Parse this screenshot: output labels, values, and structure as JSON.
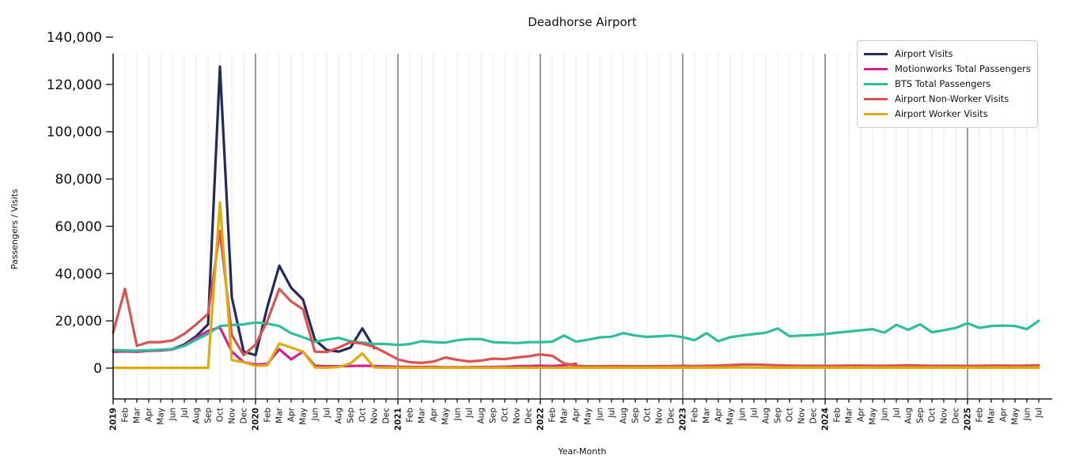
{
  "chart_data": {
    "type": "line",
    "title": "Deadhorse Airport",
    "xlabel": "Year-Month",
    "ylabel": "Passengers / Visits",
    "ylim": [
      0,
      140000
    ],
    "ytick_interval": 20000,
    "ytick_labels": [
      "0",
      "20,000",
      "40,000",
      "60,000",
      "80,000",
      "100,000",
      "120,000",
      "140,000"
    ],
    "grid": "light vertical gridline per month; dark vertical line at each January",
    "legend_position": "upper right",
    "categories": [
      "2019",
      "Feb",
      "Mar",
      "Apr",
      "May",
      "Jun",
      "Jul",
      "Aug",
      "Sep",
      "Oct",
      "Nov",
      "Dec",
      "2020",
      "Feb",
      "Mar",
      "Apr",
      "May",
      "Jun",
      "Jul",
      "Aug",
      "Sep",
      "Oct",
      "Nov",
      "Dec",
      "2021",
      "Feb",
      "Mar",
      "Apr",
      "May",
      "Jun",
      "Jul",
      "Aug",
      "Sep",
      "Oct",
      "Nov",
      "Dec",
      "2022",
      "Feb",
      "Mar",
      "Apr",
      "May",
      "Jun",
      "Jul",
      "Aug",
      "Sep",
      "Oct",
      "Nov",
      "Dec",
      "2023",
      "Feb",
      "Mar",
      "Apr",
      "May",
      "Jun",
      "Jul",
      "Aug",
      "Sep",
      "Oct",
      "Nov",
      "Dec",
      "2024",
      "Feb",
      "Mar",
      "Apr",
      "May",
      "Jun",
      "Jul",
      "Aug",
      "Sep",
      "Oct",
      "Nov",
      "Dec",
      "2025",
      "Feb",
      "Mar",
      "Apr",
      "May",
      "Jun",
      "Jul"
    ],
    "series": [
      {
        "name": "Airport Visits",
        "color": "#232a5a",
        "values": [
          7200,
          7400,
          7100,
          7500,
          7700,
          8100,
          10000,
          13500,
          18500,
          127500,
          30000,
          7000,
          5500,
          26000,
          43300,
          34000,
          29000,
          12000,
          7700,
          7000,
          8700,
          16800,
          8500,
          null,
          null,
          null,
          null,
          null,
          null,
          null,
          null,
          null,
          null,
          null,
          null,
          null,
          null,
          null,
          null,
          null,
          null,
          null,
          null,
          null,
          null,
          null,
          null,
          null,
          null,
          null,
          null,
          null,
          null,
          null,
          null,
          null,
          null,
          null,
          null,
          null,
          null,
          null,
          null,
          null,
          null,
          null,
          null,
          null,
          null,
          null,
          null,
          null,
          null,
          null,
          null,
          null,
          null,
          null,
          null
        ]
      },
      {
        "name": "Motionworks Total Passengers",
        "color": "#d3228c",
        "values": [
          6900,
          7100,
          6900,
          7300,
          7500,
          7900,
          9600,
          12800,
          15800,
          17200,
          7000,
          2500,
          1500,
          1800,
          8000,
          3700,
          7000,
          1000,
          800,
          800,
          900,
          1000,
          900,
          700,
          600,
          500,
          500,
          500,
          400,
          400,
          400,
          500,
          500,
          600,
          800,
          900,
          1000,
          900,
          1200,
          1800,
          null,
          null,
          null,
          null,
          null,
          null,
          null,
          null,
          null,
          null,
          null,
          null,
          null,
          null,
          null,
          null,
          null,
          null,
          null,
          null,
          null,
          null,
          null,
          null,
          null,
          null,
          null,
          null,
          null,
          null,
          null,
          null,
          null,
          null,
          null,
          null,
          null,
          null,
          null
        ]
      },
      {
        "name": "BTS Total Passengers",
        "color": "#2dbf9c",
        "values": [
          7700,
          7500,
          7400,
          7600,
          7800,
          8100,
          9400,
          12000,
          14500,
          17800,
          18200,
          18500,
          19300,
          18800,
          17800,
          14800,
          13100,
          11100,
          12100,
          12800,
          11400,
          10800,
          10300,
          10200,
          9800,
          10200,
          11400,
          11000,
          10800,
          11800,
          12300,
          12300,
          11000,
          10800,
          10600,
          11000,
          11000,
          11200,
          13800,
          11200,
          12000,
          13000,
          13300,
          14800,
          13800,
          13200,
          13500,
          13800,
          13100,
          11800,
          14800,
          11400,
          13100,
          13800,
          14400,
          15000,
          16800,
          13500,
          13800,
          14000,
          14400,
          15000,
          15500,
          16000,
          16500,
          15000,
          18300,
          16200,
          18500,
          15200,
          16000,
          17000,
          19000,
          17000,
          17800,
          18000,
          17800,
          16500,
          20000
        ]
      },
      {
        "name": "Airport Non-Worker Visits",
        "color": "#d85450",
        "values": [
          15000,
          33500,
          9500,
          11000,
          11000,
          11700,
          14500,
          18500,
          23000,
          58000,
          14000,
          5500,
          10000,
          20000,
          33500,
          28200,
          24900,
          7000,
          6800,
          8700,
          11000,
          10400,
          9000,
          6400,
          3700,
          2500,
          2200,
          2800,
          4500,
          3500,
          2800,
          3200,
          4000,
          3800,
          4500,
          5000,
          5800,
          5200,
          2000,
          1000,
          800,
          800,
          900,
          900,
          800,
          800,
          900,
          900,
          1000,
          900,
          1000,
          1100,
          1300,
          1500,
          1500,
          1400,
          1200,
          1100,
          1000,
          1000,
          1000,
          1000,
          1100,
          1100,
          1000,
          1000,
          1100,
          1200,
          1100,
          1000,
          1000,
          1000,
          1000,
          1000,
          1100,
          1100,
          1000,
          1100,
          1200
        ]
      },
      {
        "name": "Airport Worker Visits",
        "color": "#e2a90c",
        "values": [
          150,
          150,
          150,
          150,
          150,
          150,
          150,
          150,
          150,
          70000,
          3400,
          2500,
          1000,
          1200,
          10400,
          8700,
          7000,
          300,
          200,
          500,
          2000,
          6200,
          300,
          200,
          200,
          200,
          200,
          200,
          200,
          200,
          200,
          200,
          200,
          200,
          200,
          200,
          200,
          200,
          200,
          200,
          200,
          200,
          200,
          200,
          200,
          200,
          200,
          200,
          200,
          200,
          200,
          250,
          300,
          300,
          300,
          250,
          200,
          200,
          200,
          200,
          200,
          200,
          200,
          200,
          200,
          200,
          200,
          200,
          200,
          200,
          200,
          200,
          200,
          200,
          200,
          200,
          200,
          200,
          200
        ]
      }
    ]
  }
}
